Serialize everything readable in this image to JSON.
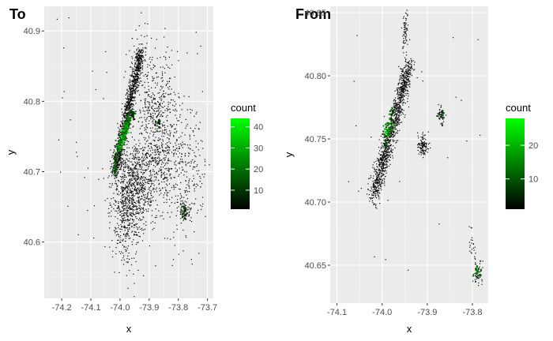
{
  "chart_data": [
    {
      "type": "heatmap",
      "title": "To",
      "xlabel": "x",
      "ylabel": "y",
      "xlim": [
        -74.26,
        -73.68
      ],
      "ylim": [
        40.52,
        40.935
      ],
      "x_ticks": [
        -74.2,
        -74.1,
        -74.0,
        -73.9,
        -73.8,
        -73.7
      ],
      "x_tick_labels": [
        "-74.2",
        "-74.1",
        "-74.0",
        "-73.9",
        "-73.8",
        "-73.7"
      ],
      "y_ticks": [
        40.6,
        40.7,
        40.8,
        40.9
      ],
      "y_tick_labels": [
        "40.6",
        "40.7",
        "40.8",
        "40.9"
      ],
      "grid": true,
      "legend": {
        "title": "count",
        "placement": "right",
        "min": 1,
        "max": 44,
        "ticks": [
          10,
          20,
          30,
          40
        ],
        "tick_labels": [
          "10",
          "20",
          "30",
          "40"
        ],
        "color_low": "#000000",
        "color_high": "#00ff00"
      },
      "hotspots": [
        {
          "x": -74.02,
          "y": 40.705,
          "count": 20
        },
        {
          "x": -74.015,
          "y": 40.72,
          "count": 18
        },
        {
          "x": -74.005,
          "y": 40.735,
          "count": 28
        },
        {
          "x": -73.998,
          "y": 40.745,
          "count": 36
        },
        {
          "x": -73.99,
          "y": 40.752,
          "count": 42
        },
        {
          "x": -73.985,
          "y": 40.76,
          "count": 40
        },
        {
          "x": -73.978,
          "y": 40.765,
          "count": 34
        },
        {
          "x": -73.975,
          "y": 40.775,
          "count": 24
        },
        {
          "x": -73.965,
          "y": 40.785,
          "count": 16
        },
        {
          "x": -73.955,
          "y": 40.78,
          "count": 12
        },
        {
          "x": -73.87,
          "y": 40.772,
          "count": 10
        },
        {
          "x": -73.78,
          "y": 40.645,
          "count": 14
        }
      ]
    },
    {
      "type": "heatmap",
      "title": "From",
      "xlabel": "x",
      "ylabel": "y",
      "xlim": [
        -74.115,
        -73.765
      ],
      "ylim": [
        40.62,
        40.855
      ],
      "x_ticks": [
        -74.1,
        -74.0,
        -73.9,
        -73.8
      ],
      "x_tick_labels": [
        "-74.1",
        "-74.0",
        "-73.9",
        "-73.8"
      ],
      "y_ticks": [
        40.65,
        40.7,
        40.75,
        40.8,
        40.85
      ],
      "y_tick_labels": [
        "40.65",
        "40.70",
        "40.75",
        "40.80",
        "40.85"
      ],
      "grid": true,
      "legend": {
        "title": "count",
        "placement": "right",
        "min": 1,
        "max": 28,
        "ticks": [
          10,
          20
        ],
        "tick_labels": [
          "10",
          "20"
        ],
        "color_low": "#000000",
        "color_high": "#00ff00"
      },
      "hotspots": [
        {
          "x": -73.99,
          "y": 40.758,
          "count": 24
        },
        {
          "x": -73.985,
          "y": 40.762,
          "count": 20
        },
        {
          "x": -73.995,
          "y": 40.75,
          "count": 14
        },
        {
          "x": -73.98,
          "y": 40.77,
          "count": 10
        },
        {
          "x": -73.79,
          "y": 40.645,
          "count": 16
        },
        {
          "x": -73.87,
          "y": 40.77,
          "count": 8
        }
      ]
    }
  ]
}
